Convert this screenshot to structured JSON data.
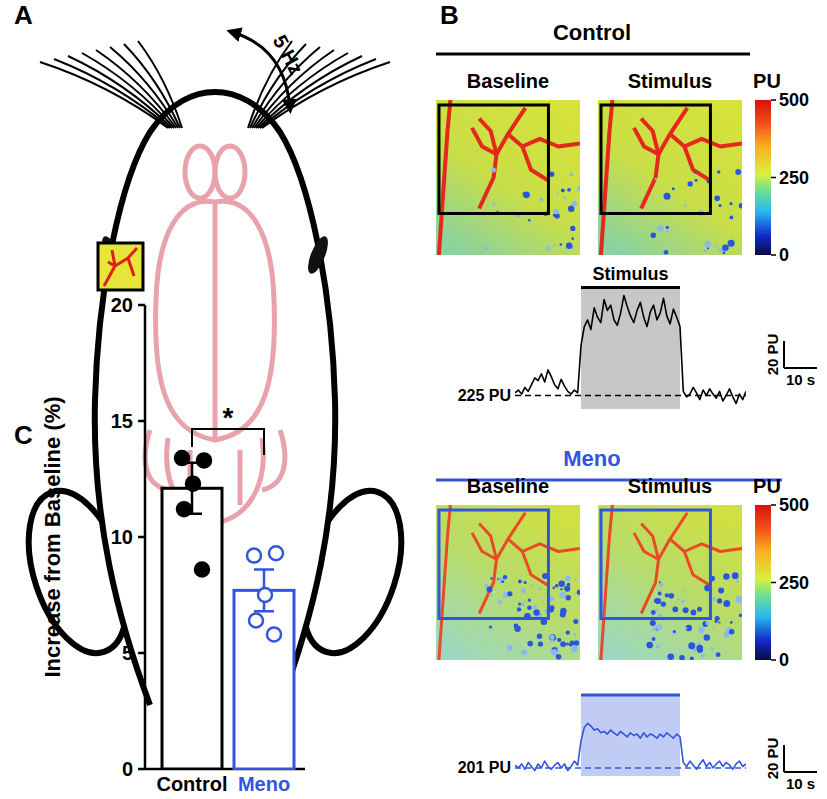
{
  "panel_labels": [
    "A",
    "B",
    "C"
  ],
  "panel_a": {
    "stimulus": "5 Hz"
  },
  "panel_b": {
    "groups": [
      {
        "title": "Control",
        "color": "#000000",
        "image_labels": [
          "Baseline",
          "Stimulus"
        ],
        "colorbar": {
          "label": "PU",
          "range": [
            0,
            500
          ],
          "ticks": [
            0,
            250,
            500
          ]
        }
      },
      {
        "title": "Meno",
        "color": "#3355dd",
        "image_labels": [
          "Baseline",
          "Stimulus"
        ],
        "colorbar": {
          "label": "PU",
          "range": [
            0,
            500
          ],
          "ticks": [
            0,
            250,
            500
          ]
        }
      }
    ]
  },
  "chart_data": [
    {
      "type": "bar",
      "y_label": "Increase from Baseline (%)",
      "ylim": [
        0,
        20
      ],
      "yticks": [
        0,
        5,
        10,
        15,
        20
      ],
      "significance": "*",
      "series": [
        {
          "name": "Control",
          "color": "#000000",
          "marker": "filled",
          "value": 12.1,
          "error": 1.1,
          "points": [
            13.4,
            13.3,
            12.3,
            11.2,
            8.6
          ]
        },
        {
          "name": "Meno",
          "color": "#3355dd",
          "marker": "open",
          "value": 7.7,
          "error": 0.9,
          "points": [
            9.2,
            9.3,
            7.5,
            6.4,
            5.8
          ]
        }
      ]
    },
    {
      "type": "line",
      "color": "#000000",
      "xlim": [
        0,
        70
      ],
      "ylim": [
        215,
        305
      ],
      "tick_labels": false,
      "x": [
        0,
        1,
        2,
        3,
        4,
        5,
        6,
        7,
        8,
        9,
        10,
        11,
        12,
        13,
        14,
        15,
        16,
        17,
        18,
        19,
        20,
        21,
        22,
        23,
        24,
        25,
        26,
        27,
        28,
        29,
        30,
        31,
        32,
        33,
        34,
        35,
        36,
        37,
        38,
        39,
        40,
        41,
        42,
        43,
        44,
        45,
        46,
        47,
        48,
        49,
        50,
        51,
        52,
        53,
        54,
        55,
        56,
        57,
        58,
        59,
        60,
        61,
        62,
        63,
        64,
        65,
        66,
        67,
        68,
        69,
        70
      ],
      "values": [
        227,
        229,
        226,
        231,
        228,
        233,
        238,
        236,
        241,
        235,
        244,
        239,
        233,
        230,
        237,
        232,
        228,
        226,
        229,
        227,
        262,
        276,
        281,
        274,
        290,
        283,
        279,
        296,
        288,
        292,
        281,
        277,
        286,
        299,
        291,
        284,
        279,
        288,
        294,
        283,
        276,
        287,
        292,
        281,
        286,
        297,
        284,
        278,
        289,
        283,
        276,
        228,
        224,
        226,
        231,
        227,
        222,
        229,
        225,
        230,
        226,
        223,
        228,
        221,
        225,
        230,
        224,
        219,
        226,
        222,
        228
      ],
      "baseline": {
        "value": 225,
        "label": "225 PU"
      },
      "stimulus": {
        "start": 20,
        "end": 50,
        "label": "Stimulus"
      },
      "scale_bar": {
        "y": 20,
        "y_label": "20 PU",
        "x": 10,
        "x_label": "10 s"
      }
    },
    {
      "type": "line",
      "color": "#3355dd",
      "xlim": [
        0,
        70
      ],
      "ylim": [
        195,
        255
      ],
      "tick_labels": false,
      "x": [
        0,
        1,
        2,
        3,
        4,
        5,
        6,
        7,
        8,
        9,
        10,
        11,
        12,
        13,
        14,
        15,
        16,
        17,
        18,
        19,
        20,
        21,
        22,
        23,
        24,
        25,
        26,
        27,
        28,
        29,
        30,
        31,
        32,
        33,
        34,
        35,
        36,
        37,
        38,
        39,
        40,
        41,
        42,
        43,
        44,
        45,
        46,
        47,
        48,
        49,
        50,
        51,
        52,
        53,
        54,
        55,
        56,
        57,
        58,
        59,
        60,
        61,
        62,
        63,
        64,
        65,
        66,
        67,
        68,
        69,
        70
      ],
      "values": [
        203,
        201,
        204,
        200,
        205,
        202,
        199,
        204,
        201,
        206,
        202,
        200,
        203,
        205,
        201,
        204,
        199,
        202,
        206,
        203,
        221,
        231,
        234,
        232,
        229,
        230,
        227,
        228,
        226,
        229,
        227,
        225,
        228,
        226,
        224,
        227,
        225,
        226,
        223,
        227,
        224,
        226,
        225,
        223,
        226,
        224,
        227,
        225,
        223,
        226,
        224,
        205,
        202,
        206,
        203,
        200,
        204,
        207,
        202,
        205,
        201,
        204,
        206,
        202,
        205,
        203,
        200,
        204,
        206,
        202,
        204
      ],
      "baseline": {
        "value": 201,
        "label": "201 PU"
      },
      "stimulus": {
        "start": 20,
        "end": 50
      },
      "scale_bar": {
        "y": 20,
        "y_label": "20 PU",
        "x": 10,
        "x_label": "10 s"
      }
    }
  ]
}
